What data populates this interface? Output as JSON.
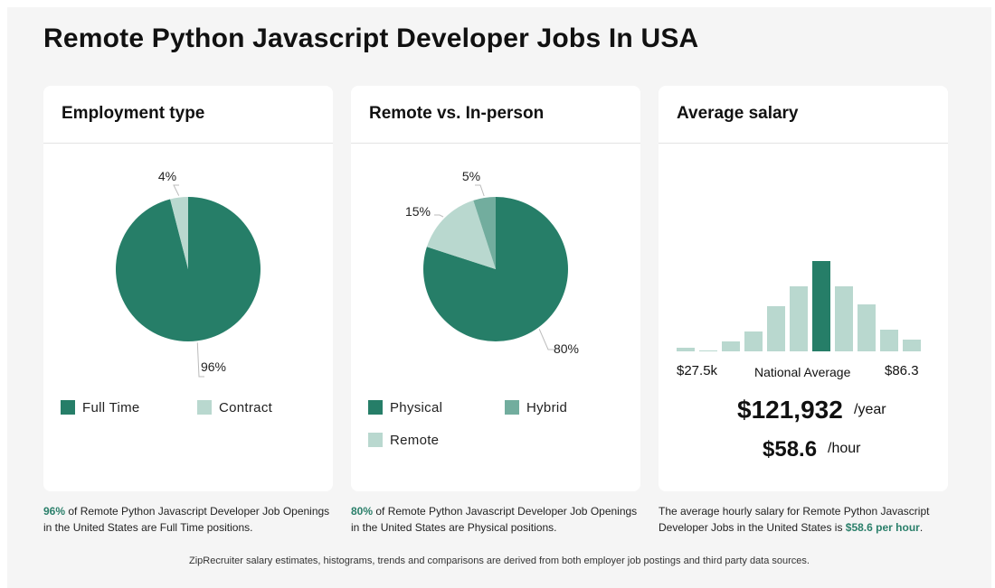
{
  "page_title": "Remote Python Javascript Developer Jobs In USA",
  "colors": {
    "dark": "#267e68",
    "mid": "#72ad9e",
    "light": "#b9d8cf",
    "highlight": "#2a7f6a"
  },
  "employment": {
    "title": "Employment type",
    "caption_pct": "96%",
    "caption_text": " of Remote Python Javascript Developer Job Openings in the United States are Full Time positions.",
    "legend": [
      "Full Time",
      "Contract"
    ]
  },
  "remote": {
    "title": "Remote vs. In-person",
    "caption_pct": "80%",
    "caption_text": " of Remote Python Javascript Developer Job Openings in the United States are Physical positions.",
    "legend": [
      "Physical",
      "Hybrid",
      "Remote"
    ]
  },
  "salary": {
    "title": "Average salary",
    "min_label": "$27.5k",
    "mid_label": "National Average",
    "max_label": "$86.3",
    "yearly": "$121,932",
    "yearly_unit": "/year",
    "hourly": "$58.6",
    "hourly_unit": "/hour",
    "caption_text": "The average hourly salary for Remote Python Javascript Developer Jobs in the United States is ",
    "caption_hl": "$58.6 per hour",
    "caption_end": "."
  },
  "footer": "ZipRecruiter salary estimates, histograms, trends and comparisons are derived from both employer job postings and third party data sources.",
  "chart_data": [
    {
      "type": "pie",
      "title": "Employment type",
      "slices": [
        {
          "label": "Full Time",
          "value": 96,
          "pct_label": "96%",
          "color": "#267e68"
        },
        {
          "label": "Contract",
          "value": 4,
          "pct_label": "4%",
          "color": "#b9d8cf"
        }
      ]
    },
    {
      "type": "pie",
      "title": "Remote vs. In-person",
      "slices": [
        {
          "label": "Physical",
          "value": 80,
          "pct_label": "80%",
          "color": "#267e68"
        },
        {
          "label": "Remote",
          "value": 15,
          "pct_label": "15%",
          "color": "#b9d8cf"
        },
        {
          "label": "Hybrid",
          "value": 5,
          "pct_label": "5%",
          "color": "#72ad9e"
        }
      ]
    },
    {
      "type": "bar",
      "title": "Average salary",
      "categories": [
        "1",
        "2",
        "3",
        "4",
        "5",
        "6",
        "7",
        "8",
        "9",
        "10",
        "11"
      ],
      "values": [
        4,
        1,
        11,
        22,
        50,
        72,
        100,
        72,
        52,
        24,
        13
      ],
      "highlight_index": 6,
      "ylim": [
        0,
        100
      ]
    }
  ]
}
